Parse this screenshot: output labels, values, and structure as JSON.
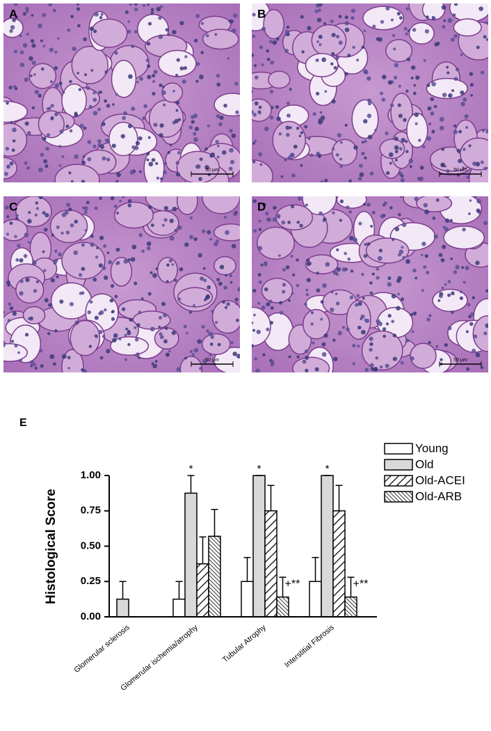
{
  "panels": [
    {
      "label": "A",
      "scale_bar": "50 µm"
    },
    {
      "label": "B",
      "scale_bar": "50 µm"
    },
    {
      "label": "C",
      "scale_bar": "50 µm"
    },
    {
      "label": "D",
      "scale_bar": "50 µm"
    }
  ],
  "chart_data": {
    "type": "bar",
    "label": "E",
    "ylabel": "Histological Score",
    "categories": [
      "Glomerular sclerosis",
      "Glomerular ischemia/atrophy",
      "Tubular Atrophy",
      "Interstitial Fibrosis"
    ],
    "series": [
      {
        "name": "Young",
        "color": "#ffffff",
        "hatch": null,
        "values": [
          0,
          0.125,
          0.25,
          0.25
        ],
        "errors": [
          0,
          0.125,
          0.17,
          0.17
        ],
        "markers": [
          null,
          null,
          null,
          null
        ]
      },
      {
        "name": "Old",
        "color": "#d9d9d9",
        "hatch": null,
        "values": [
          0.125,
          0.875,
          1.0,
          1.0
        ],
        "errors": [
          0.125,
          0.125,
          0,
          0
        ],
        "markers": [
          null,
          "*",
          "*",
          "*"
        ]
      },
      {
        "name": "Old-ACEI",
        "color": "#ffffff",
        "hatch": "wide",
        "values": [
          0,
          0.375,
          0.75,
          0.75
        ],
        "errors": [
          0,
          0.19,
          0.18,
          0.18
        ],
        "markers": [
          null,
          null,
          null,
          null
        ]
      },
      {
        "name": "Old-ARB",
        "color": "#ffffff",
        "hatch": "dense",
        "values": [
          0,
          0.57,
          0.14,
          0.14
        ],
        "errors": [
          0,
          0.19,
          0.14,
          0.14
        ],
        "markers": [
          null,
          null,
          "+**",
          "+**"
        ]
      }
    ],
    "ylim": [
      0,
      1.0
    ],
    "yticks": [
      {
        "value": 0,
        "label": "0.00"
      },
      {
        "value": 0.25,
        "label": "0.25"
      },
      {
        "value": 0.5,
        "label": "0.50"
      },
      {
        "value": 0.75,
        "label": "0.75"
      },
      {
        "value": 1.0,
        "label": "1.00"
      }
    ],
    "legend": "right"
  }
}
